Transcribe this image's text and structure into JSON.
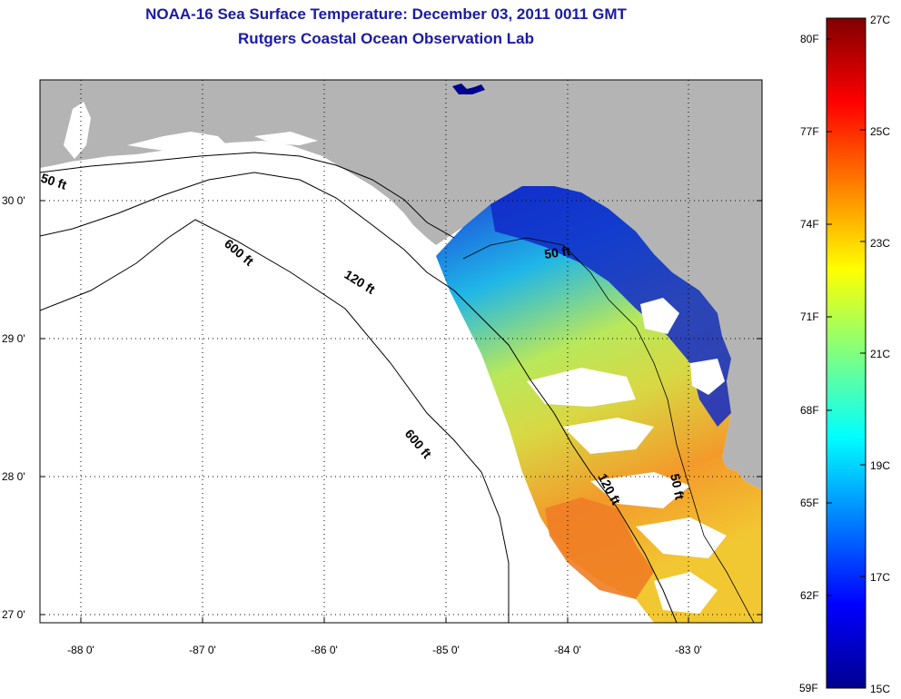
{
  "header": {
    "title": "NOAA-16 Sea Surface Temperature:  December 03, 2011 0011 GMT",
    "subtitle": "Rutgers Coastal Ocean Observation Lab"
  },
  "map": {
    "lat_labels": [
      "30 0'",
      "29 0'",
      "28 0'",
      "27 0'"
    ],
    "lon_labels": [
      "-88 0'",
      "-87 0'",
      "-86 0'",
      "-85 0'",
      "-84 0'",
      "-83 0'"
    ],
    "lat_range": [
      26.95,
      30.9
    ],
    "lon_range": [
      -88.35,
      -82.4
    ],
    "grid": "dotted",
    "contour_labels": [
      "50 ft",
      "600 ft",
      "120 ft",
      "50 ft",
      "600 ft",
      "120 ft",
      "50 ft"
    ]
  },
  "colorbar": {
    "fahrenheit_labels": [
      "80F",
      "77F",
      "74F",
      "71F",
      "68F",
      "65F",
      "62F",
      "59F"
    ],
    "celsius_labels": [
      "27C",
      "25C",
      "23C",
      "21C",
      "19C",
      "17C",
      "15C"
    ],
    "range_c": [
      15,
      27
    ]
  },
  "colors": {
    "land": "#b4b4b4",
    "title": "#1a1aa6",
    "cold": "#00008f",
    "warm": "#800000"
  }
}
